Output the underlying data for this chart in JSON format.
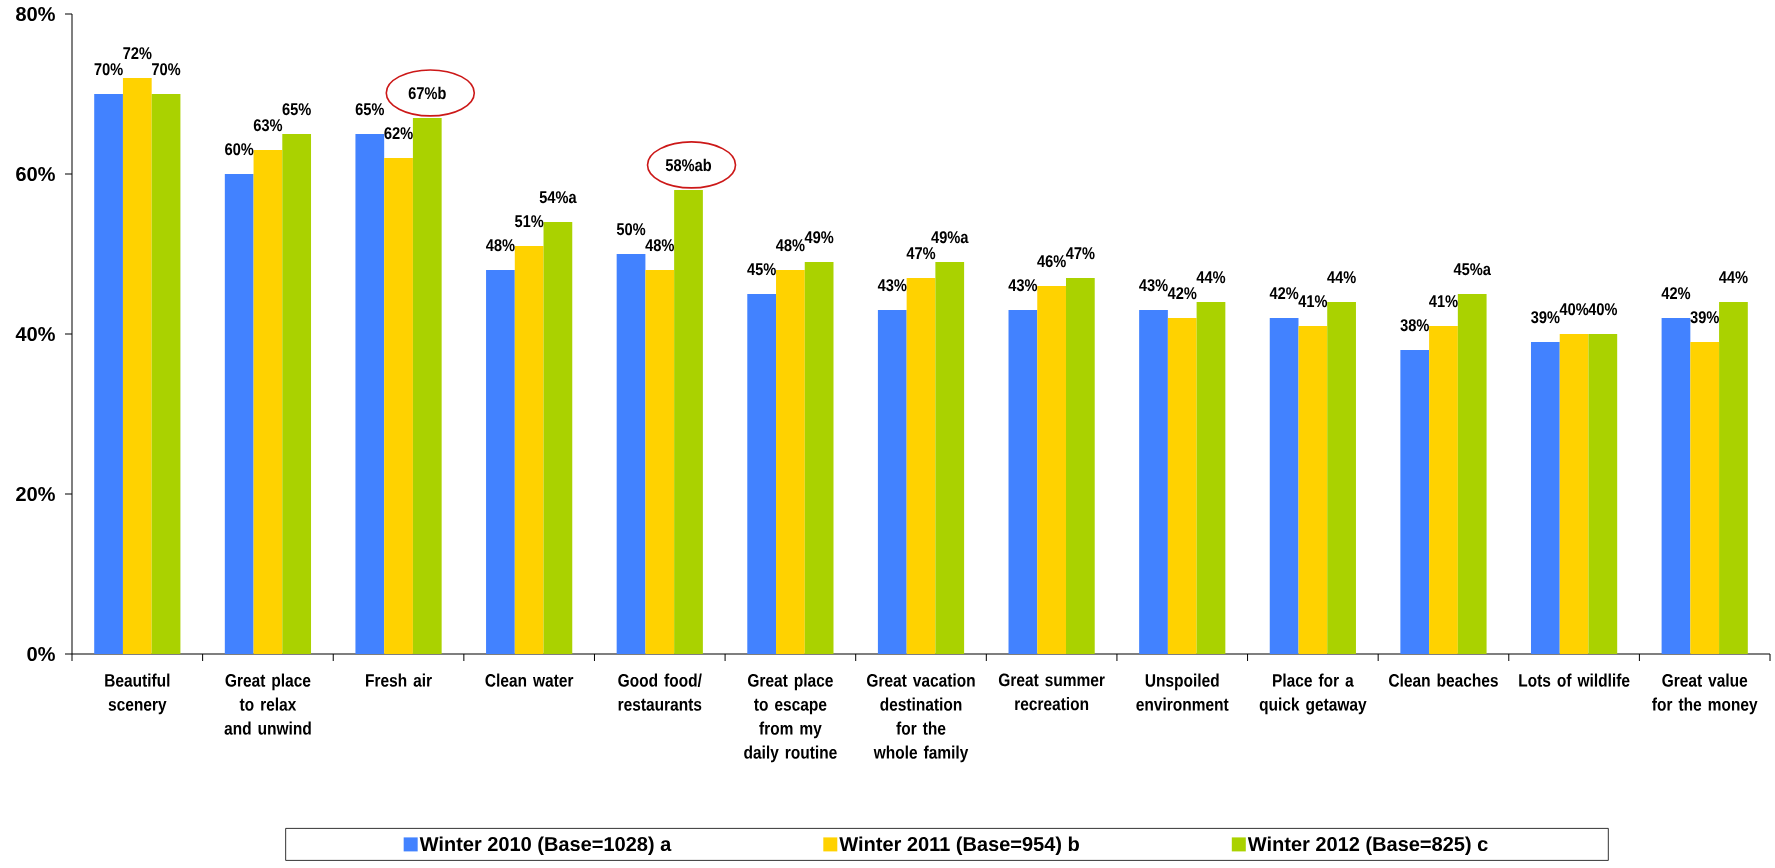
{
  "chart_data": {
    "type": "bar",
    "categories": [
      "Beautiful scenery",
      "Great place to relax and unwind",
      "Fresh air",
      "Clean water",
      "Good food/ restaurants",
      "Great place to escape from my daily routine",
      "Great vacation destination for the whole family",
      "Great summer recreation",
      "Unspoiled environment",
      "Place for a quick getaway",
      "Clean beaches",
      "Lots of wildlife",
      "Great value for the money"
    ],
    "series": [
      {
        "name": "Winter 2010 (Base=1028) a",
        "color": "#4282ff",
        "values": [
          70,
          60,
          65,
          48,
          50,
          45,
          43,
          43,
          43,
          42,
          38,
          39,
          42
        ],
        "value_labels": [
          "70%",
          "60%",
          "65%",
          "48%",
          "50%",
          "45%",
          "43%",
          "43%",
          "43%",
          "42%",
          "38%",
          "39%",
          "42%"
        ]
      },
      {
        "name": "Winter 2011 (Base=954) b",
        "color": "#ffd200",
        "values": [
          72,
          63,
          62,
          51,
          48,
          48,
          47,
          46,
          42,
          41,
          41,
          40,
          39
        ],
        "value_labels": [
          "72%",
          "63%",
          "62%",
          "51%",
          "48%",
          "48%",
          "47%",
          "46%",
          "42%",
          "41%",
          "41%",
          "40%",
          "39%"
        ]
      },
      {
        "name": "Winter 2012 (Base=825) c",
        "color": "#aad200",
        "values": [
          70,
          65,
          67,
          54,
          58,
          49,
          49,
          47,
          44,
          44,
          45,
          40,
          44
        ],
        "value_labels": [
          "70%",
          "65%",
          "67%b",
          "54%a",
          "58%ab",
          "49%",
          "49%a",
          "47%",
          "44%",
          "44%",
          "45%a",
          "40%",
          "44%"
        ]
      }
    ],
    "ylim": [
      0,
      80
    ],
    "yticks": [
      {
        "value": 0,
        "label": "0%"
      },
      {
        "value": 20,
        "label": "20%"
      },
      {
        "value": 40,
        "label": "40%"
      },
      {
        "value": 60,
        "label": "60%"
      },
      {
        "value": 80,
        "label": "80%"
      }
    ],
    "legend": "bottom"
  }
}
